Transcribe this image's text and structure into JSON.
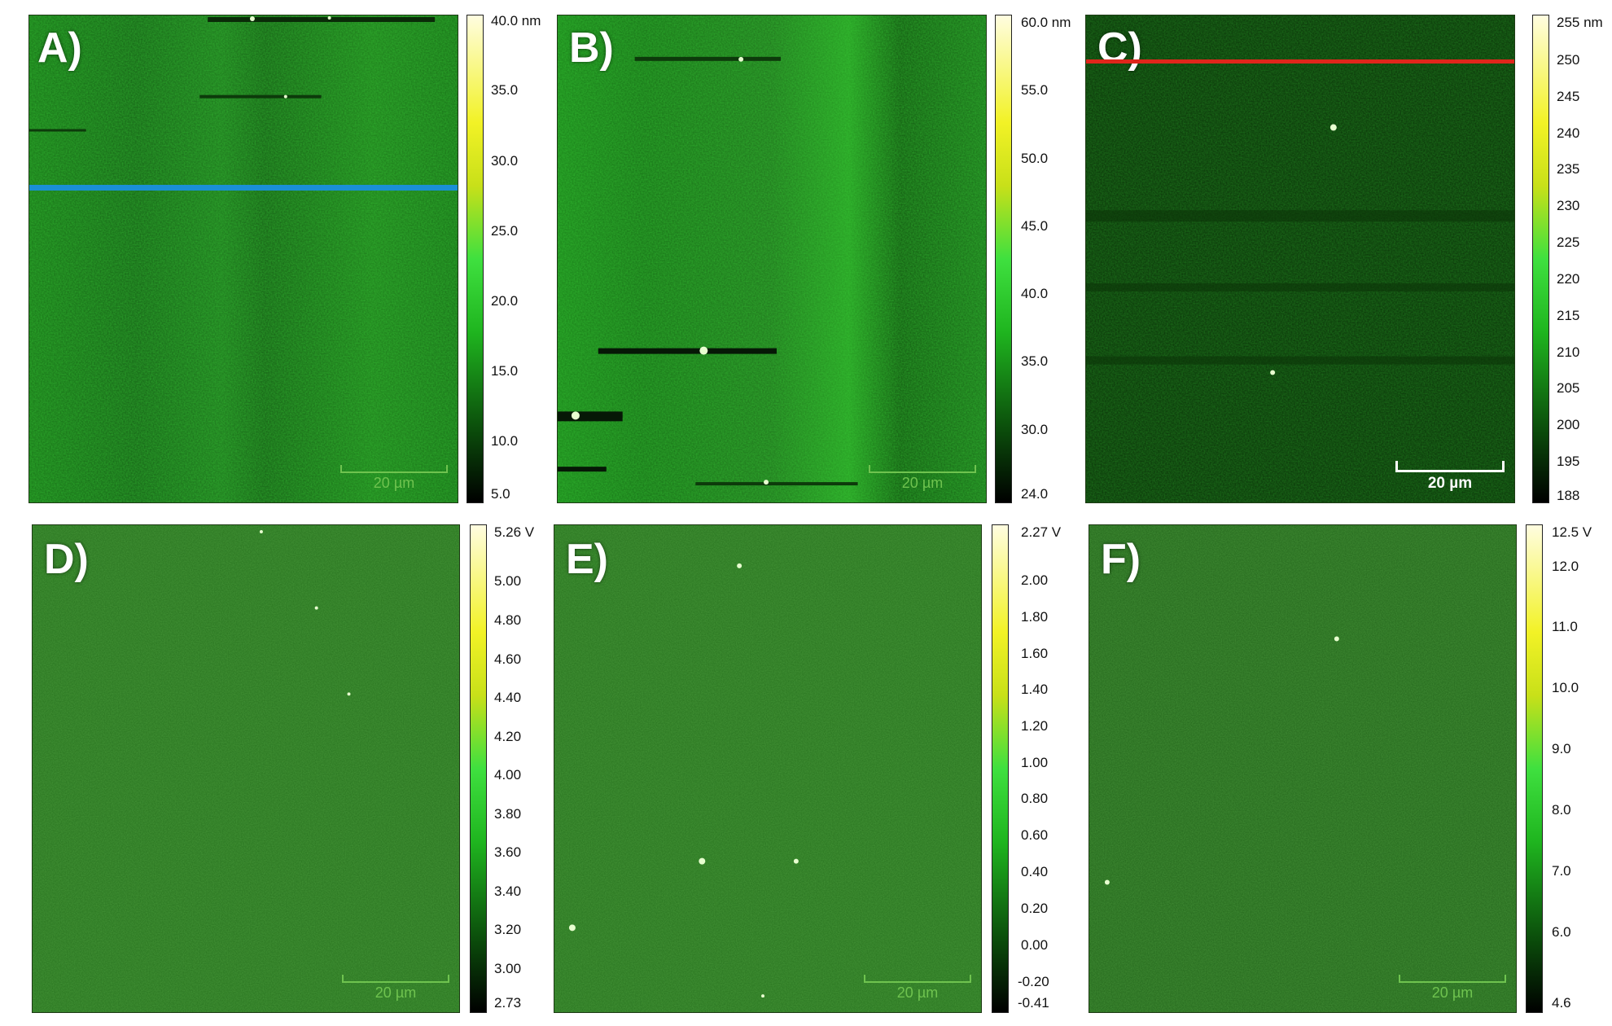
{
  "panels": [
    {
      "label": "A)",
      "scalebar": "20 µm",
      "colorbar": {
        "ticks": [
          "40.0 nm",
          "35.0",
          "30.0",
          "25.0",
          "20.0",
          "15.0",
          "10.0",
          "5.0"
        ]
      },
      "profile_line_color": "#1a8fd6"
    },
    {
      "label": "B)",
      "scalebar": "20 µm",
      "colorbar": {
        "ticks": [
          "60.0 nm",
          "55.0",
          "50.0",
          "45.0",
          "40.0",
          "35.0",
          "30.0",
          "24.0"
        ]
      }
    },
    {
      "label": "C)",
      "scalebar": "20 µm",
      "colorbar": {
        "ticks": [
          "255 nm",
          "250",
          "245",
          "240",
          "235",
          "230",
          "225",
          "220",
          "215",
          "210",
          "205",
          "200",
          "195",
          "188"
        ]
      },
      "profile_line_color": "#e0261b"
    },
    {
      "label": "D)",
      "scalebar": "20 µm",
      "colorbar": {
        "ticks": [
          "5.26 V",
          "5.00",
          "4.80",
          "4.60",
          "4.40",
          "4.20",
          "4.00",
          "3.80",
          "3.60",
          "3.40",
          "3.20",
          "3.00",
          "2.73"
        ]
      }
    },
    {
      "label": "E)",
      "scalebar": "20 µm",
      "colorbar": {
        "ticks": [
          "2.27 V",
          "2.00",
          "1.80",
          "1.60",
          "1.40",
          "1.20",
          "1.00",
          "0.80",
          "0.60",
          "0.40",
          "0.20",
          "0.00",
          "-0.20",
          "-0.41"
        ]
      }
    },
    {
      "label": "F)",
      "scalebar": "20 µm",
      "colorbar": {
        "ticks": [
          "12.5 V",
          "12.0",
          "11.0",
          "10.0",
          "9.0",
          "8.0",
          "7.0",
          "6.0",
          "4.6"
        ]
      }
    }
  ]
}
